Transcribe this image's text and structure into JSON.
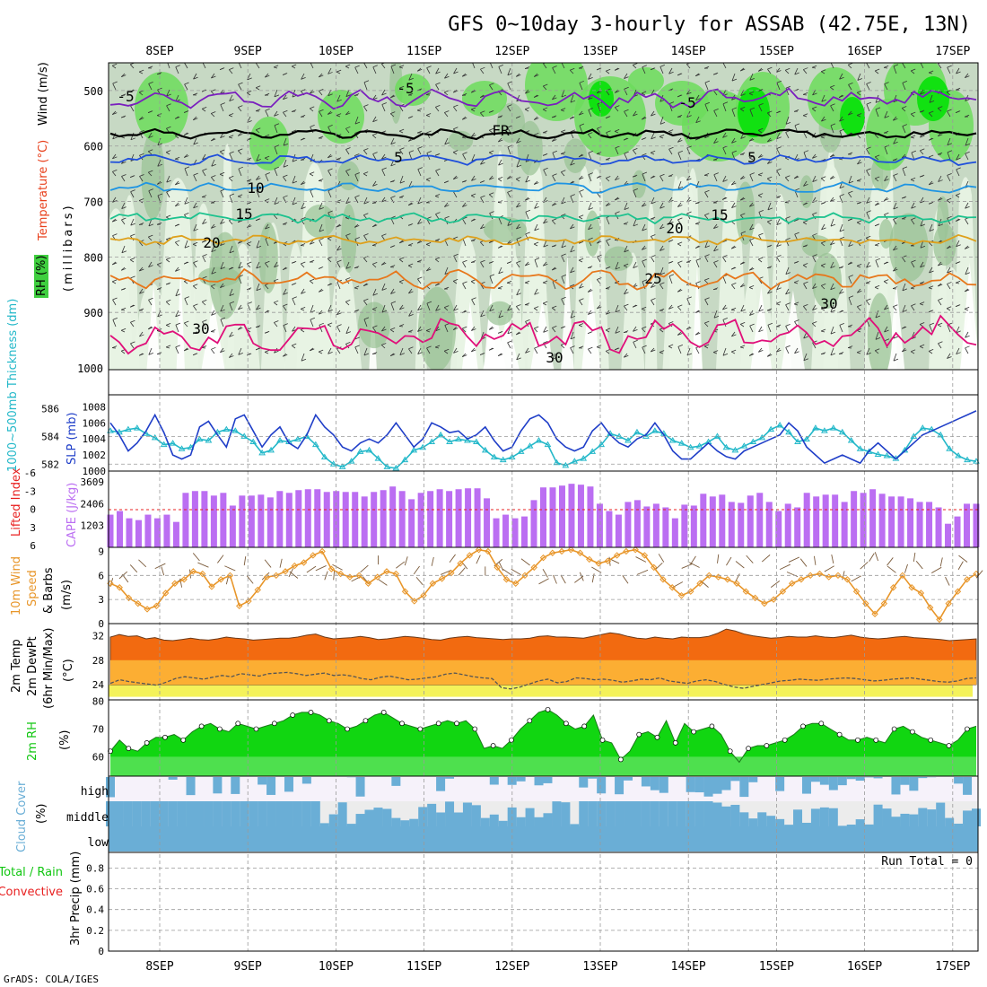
{
  "title": "GFS 0~10day 3-hourly for ASSAB (42.75E, 13N)",
  "footer": "GrADS: COLA/IGES",
  "days": [
    "8SEP",
    "9SEP",
    "10SEP",
    "11SEP",
    "12SEP",
    "13SEP",
    "14SEP",
    "15SEP",
    "16SEP",
    "17SEP"
  ],
  "colors": {
    "rh_light": "#e8f3e4",
    "rh_mid": "#c7d9c4",
    "rh_dark": "#98c294",
    "rh_green": "#6cdc5c",
    "rh_bright": "#11e111",
    "t_m5": "#7a1fbe",
    "t_fr": "#000000",
    "t_5": "#1f4fdb",
    "t_10": "#1e94e3",
    "t_15": "#1cc28e",
    "t_20": "#dea01b",
    "t_25": "#e7771b",
    "t_30": "#e00f7a",
    "slp": "#1f3ec8",
    "thick": "#23b8c9",
    "cape": "#bb6ef2",
    "li": "#e82020",
    "wind10": "#e8962a",
    "temp2m": "#f26a10",
    "dewpt": "#fcae33",
    "rh2m": "#11d611",
    "cloud": "#6aaed6",
    "cloud_bg": "#ececec"
  },
  "panels": {
    "upper": {
      "y_label": "Wind (m/s)",
      "t_label": "Temperature (°C)",
      "rh_label": "RH (%)",
      "unit": "(millibars)",
      "ticks": [
        "500",
        "600",
        "700",
        "800",
        "900",
        "1000"
      ]
    },
    "slp": {
      "left_label": "1000~500mb Thickness (dm)",
      "right_label": "SLP (mb)",
      "left_ticks": [
        "586",
        "584",
        "582"
      ],
      "right_ticks": [
        "1008",
        "1006",
        "1004",
        "1002",
        "1000"
      ]
    },
    "cape": {
      "left_label": "Lifted Index",
      "right_label": "CAPE (J/kg)",
      "left_ticks": [
        "-6",
        "-3",
        "0",
        "3",
        "6"
      ],
      "right_ticks": [
        "3609",
        "2406",
        "1203"
      ]
    },
    "wind": {
      "label_a": "10m Wind",
      "label_b": "Speed",
      "label_c": "& Barbs",
      "unit": "(m/s)",
      "ticks": [
        "9",
        "6",
        "3",
        "0"
      ]
    },
    "temp": {
      "label_a": "2m Temp",
      "label_b": "2m DewPt",
      "label_c": "(6hr Min/Max)",
      "unit": "(°C)",
      "ticks": [
        "32",
        "28",
        "24"
      ]
    },
    "rh": {
      "label": "2m RH",
      "unit": "(%)",
      "ticks": [
        "80",
        "70",
        "60"
      ]
    },
    "cloud": {
      "label": "Cloud Cover",
      "unit": "(%)",
      "levels": [
        "high",
        "middle",
        "low"
      ]
    },
    "precip": {
      "label_total": "Total / Rain",
      "label_conv": "Convective",
      "label_unit": "3hr Precip (mm)",
      "run_total": "Run Total = 0",
      "ticks": [
        "0.8",
        "0.6",
        "0.4",
        "0.2",
        "0"
      ]
    }
  },
  "contour_labels": [
    {
      "text": "-5",
      "color": "t_m5"
    },
    {
      "text": "-5",
      "color": "t_m5"
    },
    {
      "text": "-5",
      "color": "t_m5"
    },
    {
      "text": "FR",
      "color": "t_fr"
    },
    {
      "text": "5",
      "color": "t_5"
    },
    {
      "text": "5",
      "color": "t_5"
    },
    {
      "text": "10",
      "color": "t_10"
    },
    {
      "text": "15",
      "color": "t_15"
    },
    {
      "text": "15",
      "color": "t_15"
    },
    {
      "text": "20",
      "color": "t_20"
    },
    {
      "text": "20",
      "color": "t_20"
    },
    {
      "text": "25",
      "color": "t_25"
    },
    {
      "text": "30",
      "color": "t_30"
    },
    {
      "text": "30",
      "color": "t_30"
    },
    {
      "text": "30",
      "color": "t_30"
    }
  ],
  "chart_data": {
    "type": "line",
    "x_start": "7SEP 21Z",
    "x_step_hours": 3,
    "upper_air": {
      "ylim_mb": [
        1000,
        450
      ],
      "temperature_contours_c": [
        -5,
        0,
        5,
        10,
        15,
        20,
        25,
        30
      ],
      "isotherm_mb_mean": {
        "-5": 515,
        "0": 578,
        "5": 625,
        "10": 675,
        "15": 730,
        "20": 770,
        "25": 840,
        "30": 940
      }
    },
    "thickness_dm": {
      "ylim": [
        581.5,
        587
      ],
      "values": [
        584.4,
        584.3,
        584.5,
        584.6,
        584.2,
        583.9,
        583.4,
        583.5,
        583.1,
        583.2,
        583.8,
        583.7,
        584.3,
        584.5,
        584.4,
        584.0,
        583.6,
        582.8,
        583.0,
        583.7,
        583.6,
        583.8,
        584.0,
        583.4,
        582.5,
        582.0,
        581.8,
        582.2,
        582.9,
        583.0,
        582.4,
        581.8,
        581.7,
        582.3,
        583.0,
        583.2,
        583.6,
        584.1,
        583.6,
        583.8,
        583.7,
        583.6,
        583.0,
        582.5,
        582.3,
        582.5,
        582.9,
        583.3,
        583.7,
        583.4,
        582.1,
        581.9,
        582.2,
        582.4,
        582.9,
        583.4,
        584.2,
        584.0,
        583.7,
        584.3,
        584.0,
        584.4,
        584.2,
        583.7,
        583.5,
        583.2,
        583.3,
        583.6,
        584.0,
        583.2,
        583.0,
        583.3,
        583.6,
        583.9,
        584.5,
        584.8,
        584.3,
        583.6,
        583.8,
        584.6,
        584.4,
        584.6,
        584.3,
        583.7,
        583.1,
        582.9,
        582.7,
        582.6,
        582.4,
        583.0,
        584.0,
        584.6,
        584.5,
        584.1,
        583.1,
        582.6,
        582.3,
        582.2
      ]
    },
    "slp_mb": {
      "ylim": [
        1000,
        1009.5
      ],
      "values": [
        1006.0,
        1004.5,
        1002.5,
        1003.5,
        1005.0,
        1007.0,
        1004.8,
        1002.0,
        1001.5,
        1002.0,
        1005.5,
        1006.2,
        1004.5,
        1003.0,
        1006.5,
        1007.0,
        1005.0,
        1003.0,
        1004.5,
        1005.5,
        1003.5,
        1002.8,
        1004.5,
        1007.0,
        1005.5,
        1004.5,
        1003.0,
        1002.5,
        1003.5,
        1004.0,
        1003.5,
        1004.5,
        1006.0,
        1004.5,
        1003.0,
        1004.0,
        1006.0,
        1005.5,
        1004.8,
        1005.0,
        1004.0,
        1004.5,
        1005.5,
        1003.8,
        1002.5,
        1003.0,
        1005.0,
        1006.5,
        1007.0,
        1006.0,
        1004.0,
        1003.0,
        1002.5,
        1003.0,
        1005.0,
        1006.0,
        1004.5,
        1003.5,
        1003.0,
        1004.0,
        1004.5,
        1006.0,
        1004.5,
        1002.5,
        1001.5,
        1001.5,
        1002.5,
        1003.5,
        1002.5,
        1001.8,
        1001.5,
        1002.5,
        1003.0,
        1003.5,
        1004.0,
        1004.5,
        1006.0,
        1005.0,
        1003.0,
        1002.0,
        1001.0,
        1001.5,
        1002.0,
        1001.5,
        1001.0,
        1002.5,
        1003.5,
        1002.5,
        1001.5,
        1002.5,
        1003.5,
        1004.5,
        1005.0,
        1005.5,
        1006.0,
        1006.5,
        1007.0,
        1007.5
      ]
    },
    "cape_jkg": {
      "ylim": [
        0,
        4200
      ],
      "values": [
        1800,
        2000,
        1600,
        1500,
        1800,
        1600,
        1800,
        1400,
        3000,
        3100,
        3100,
        2850,
        3000,
        2300,
        2850,
        2850,
        2900,
        2750,
        3100,
        3000,
        3150,
        3200,
        3200,
        3050,
        3100,
        3050,
        3050,
        2800,
        3050,
        3150,
        3350,
        3100,
        2650,
        3000,
        3100,
        3200,
        3100,
        3200,
        3250,
        3250,
        2700,
        1600,
        1800,
        1600,
        1700,
        2600,
        3300,
        3300,
        3400,
        3500,
        3450,
        3350,
        2400,
        2000,
        1800,
        2500,
        2600,
        2250,
        2400,
        2200,
        1600,
        2350,
        2300,
        2950,
        2800,
        2900,
        2500,
        2450,
        2850,
        3000,
        2500,
        2000,
        2400,
        2200,
        3000,
        2800,
        2900,
        2900,
        2500,
        3100,
        3000,
        3200,
        2950,
        2800,
        2800,
        2700,
        2500,
        2500,
        2200,
        1300,
        1700,
        2400,
        2400
      ]
    },
    "lifted_index": {
      "ylim": [
        6,
        -6
      ]
    },
    "wind10m_ms": {
      "ylim": [
        0,
        9.5
      ],
      "values": [
        5.0,
        4.5,
        3.2,
        2.5,
        1.8,
        2.2,
        3.8,
        5.0,
        5.5,
        6.5,
        6.2,
        4.6,
        5.5,
        6.0,
        2.2,
        2.8,
        4.2,
        5.8,
        6.0,
        6.5,
        7.2,
        7.6,
        8.5,
        9.0,
        6.8,
        6.2,
        5.8,
        6.0,
        5.0,
        5.8,
        6.5,
        6.2,
        4.0,
        2.8,
        3.5,
        5.0,
        5.6,
        6.3,
        7.5,
        8.5,
        9.2,
        9.0,
        7.0,
        5.5,
        5.0,
        6.0,
        7.0,
        8.2,
        8.8,
        9.0,
        9.2,
        8.8,
        8.0,
        7.5,
        7.8,
        8.5,
        9.0,
        9.2,
        8.5,
        7.0,
        5.5,
        4.5,
        3.5,
        4.0,
        5.0,
        6.0,
        5.8,
        5.5,
        5.0,
        4.0,
        3.2,
        2.5,
        3.0,
        4.0,
        5.0,
        5.5,
        6.0,
        6.2,
        5.8,
        6.0,
        5.5,
        4.0,
        2.5,
        1.2,
        2.5,
        4.5,
        6.0,
        4.5,
        3.8,
        2.0,
        0.5,
        2.5,
        4.0,
        5.5,
        6.2
      ]
    },
    "temp2m_c": {
      "ylim": [
        21.5,
        34
      ],
      "max": [
        31.8,
        32.2,
        31.9,
        32.0,
        31.5,
        31.7,
        31.3,
        31.2,
        31.4,
        31.6,
        31.4,
        31.3,
        31.5,
        31.8,
        31.6,
        31.5,
        31.3,
        31.4,
        31.5,
        31.6,
        31.6,
        31.8,
        32.1,
        32.3,
        31.8,
        31.5,
        31.6,
        31.7,
        31.9,
        31.7,
        31.4,
        31.5,
        31.7,
        31.9,
        31.8,
        31.6,
        31.4,
        31.3,
        31.6,
        31.8,
        31.9,
        31.7,
        31.6,
        31.5,
        31.4,
        31.5,
        31.5,
        31.6,
        31.9,
        32.0,
        31.8,
        31.8,
        31.7,
        31.6,
        31.9,
        32.2,
        32.5,
        32.3,
        31.9,
        31.6,
        31.5,
        31.8,
        31.6,
        31.5,
        31.8,
        31.7,
        31.7,
        31.9,
        32.4,
        33.1,
        32.8,
        32.3,
        32.0,
        31.8,
        31.6,
        31.7,
        31.9,
        31.8,
        31.8,
        32.0,
        31.8,
        31.7,
        31.9,
        32.1,
        31.8,
        31.6,
        31.5,
        31.6,
        31.8,
        31.9,
        31.7,
        31.6,
        31.5,
        31.4,
        31.2,
        31.3,
        31.4,
        31.5
      ],
      "dewpt": [
        24.2,
        24.8,
        24.5,
        24.3,
        24.1,
        23.9,
        24.4,
        25.0,
        25.3,
        25.1,
        24.9,
        25.2,
        25.5,
        25.3,
        25.8,
        25.6,
        25.4,
        25.8,
        25.9,
        26.0,
        25.8,
        25.5,
        25.7,
        25.9,
        25.5,
        25.6,
        25.4,
        25.0,
        24.8,
        25.2,
        25.4,
        25.1,
        24.8,
        24.9,
        25.1,
        25.3,
        25.7,
        25.9,
        25.6,
        25.3,
        25.1,
        25.0,
        23.5,
        23.3,
        23.6,
        24.1,
        24.6,
        24.9,
        24.3,
        24.5,
        25.1,
        25.0,
        24.8,
        24.9,
        24.7,
        24.4,
        24.6,
        24.9,
        24.8,
        25.1,
        24.6,
        24.4,
        24.2,
        24.6,
        24.8,
        24.5,
        24.0,
        23.6,
        23.4,
        23.7,
        24.0,
        24.3,
        24.6,
        24.7,
        24.9,
        24.8,
        24.7,
        24.9,
        25.0,
        25.1,
        25.0,
        24.8,
        24.6,
        24.7,
        24.9,
        25.0,
        25.1,
        24.9,
        24.7,
        24.5,
        24.4,
        24.6,
        25.0,
        25.1
      ]
    },
    "rh2m_pct": {
      "ylim": [
        53,
        80.5
      ],
      "values": [
        62,
        66,
        63,
        62,
        65,
        67,
        67,
        68,
        66,
        69,
        71,
        72,
        70,
        69,
        72,
        71,
        70,
        71,
        72,
        73,
        75,
        76,
        76,
        75,
        73,
        72,
        70,
        71,
        73,
        75,
        76,
        74,
        72,
        71,
        70,
        71,
        72,
        73,
        72,
        73,
        70,
        63,
        64,
        63,
        66,
        70,
        73,
        76,
        77,
        75,
        72,
        70,
        71,
        75,
        66,
        65,
        59,
        62,
        68,
        69,
        67,
        73,
        65,
        72,
        69,
        70,
        71,
        68,
        62,
        58,
        63,
        64,
        64,
        65,
        66,
        68,
        71,
        72,
        72,
        70,
        68,
        66,
        66,
        67,
        66,
        65,
        70,
        71,
        69,
        67,
        66,
        65,
        64,
        66,
        70,
        71
      ]
    },
    "cloud_cover": {
      "levels": [
        "high",
        "middle",
        "low"
      ]
    },
    "precip_mm": {
      "ylim": [
        0,
        0.95
      ],
      "run_total_mm": 0
    }
  }
}
